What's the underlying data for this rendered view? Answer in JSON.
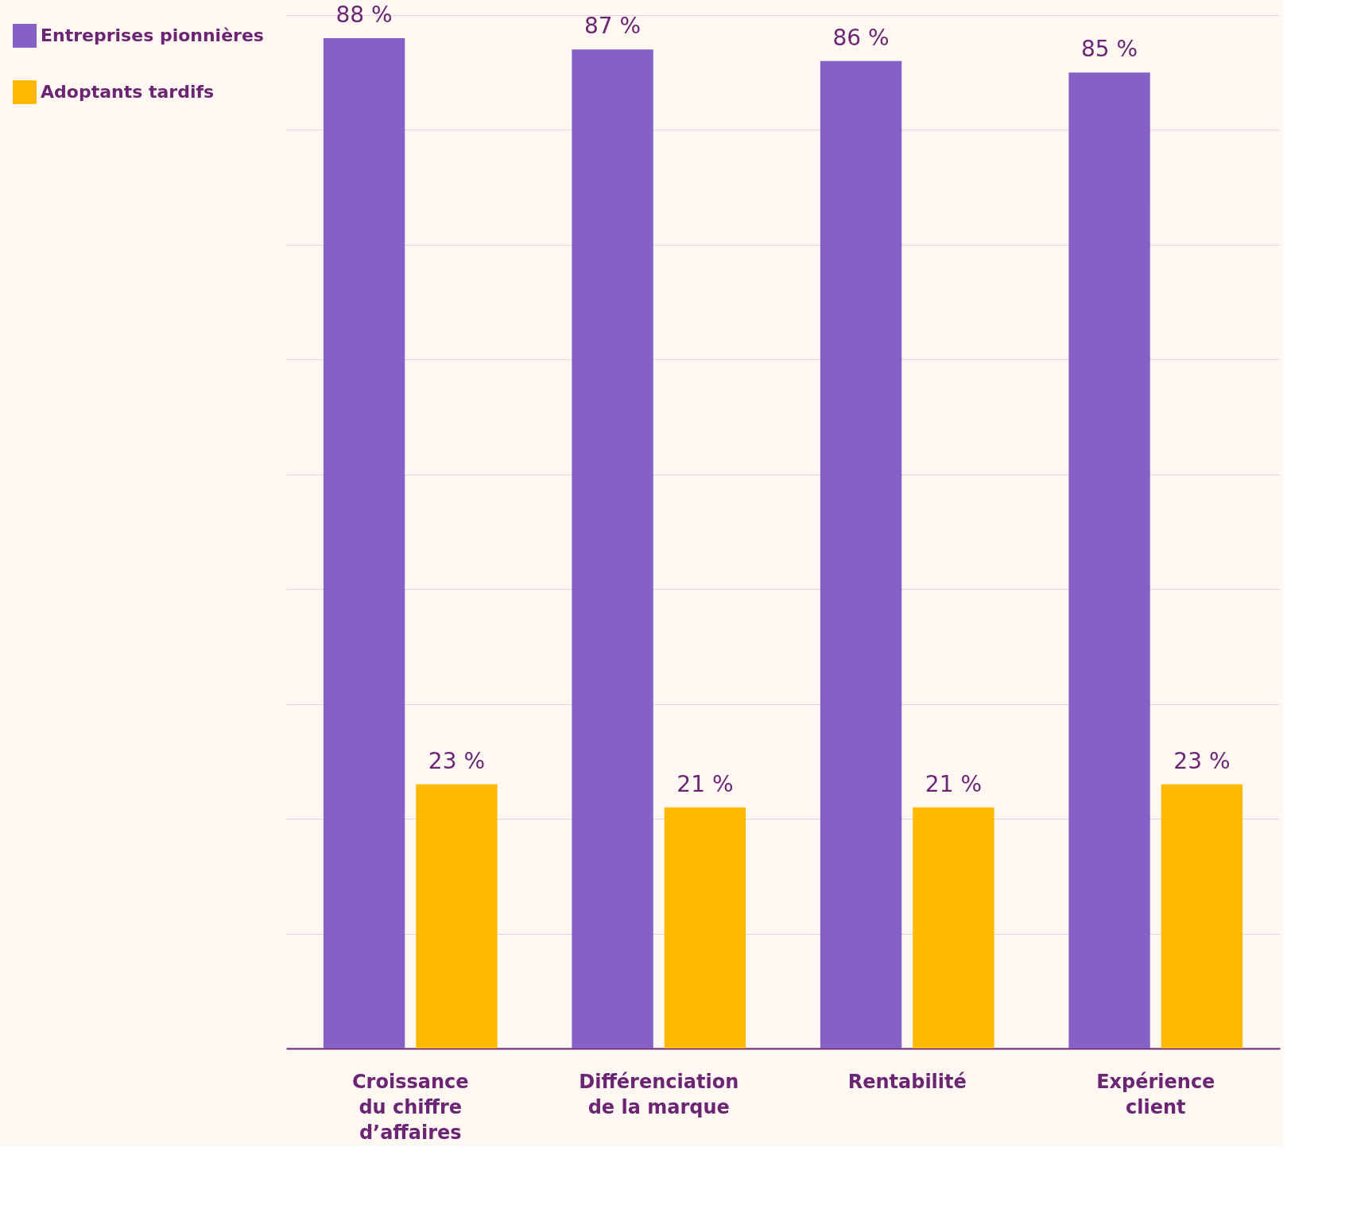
{
  "chart_data": {
    "type": "bar",
    "categories": [
      "Croissance du chiffre d’affaires",
      "Différenciation de la marque",
      "Rentabilité",
      "Expérience client"
    ],
    "series": [
      {
        "name": "Entreprises pionnières",
        "color": "#8661c5",
        "values": [
          88,
          87,
          86,
          85
        ],
        "value_labels": [
          "88 %",
          "87 %",
          "86 %",
          "85 %"
        ]
      },
      {
        "name": "Adoptants tardifs",
        "color": "#ffb900",
        "values": [
          23,
          21,
          21,
          23
        ],
        "value_labels": [
          "23 %",
          "21 %",
          "21 %",
          "23 %"
        ]
      }
    ],
    "ylim": [
      0,
      90
    ],
    "yticks": [
      {
        "value": 0,
        "label": null
      },
      {
        "value": 10,
        "label": null
      },
      {
        "value": 20,
        "label": null
      },
      {
        "value": 30,
        "label": null
      },
      {
        "value": 40,
        "label": null
      },
      {
        "value": 50,
        "label": null
      },
      {
        "value": 60,
        "label": null
      },
      {
        "value": 70,
        "label": null
      },
      {
        "value": 80,
        "label": null
      },
      {
        "value": 90,
        "label": null
      }
    ],
    "tick_labels": "x",
    "grid": "y",
    "legend": "left"
  }
}
